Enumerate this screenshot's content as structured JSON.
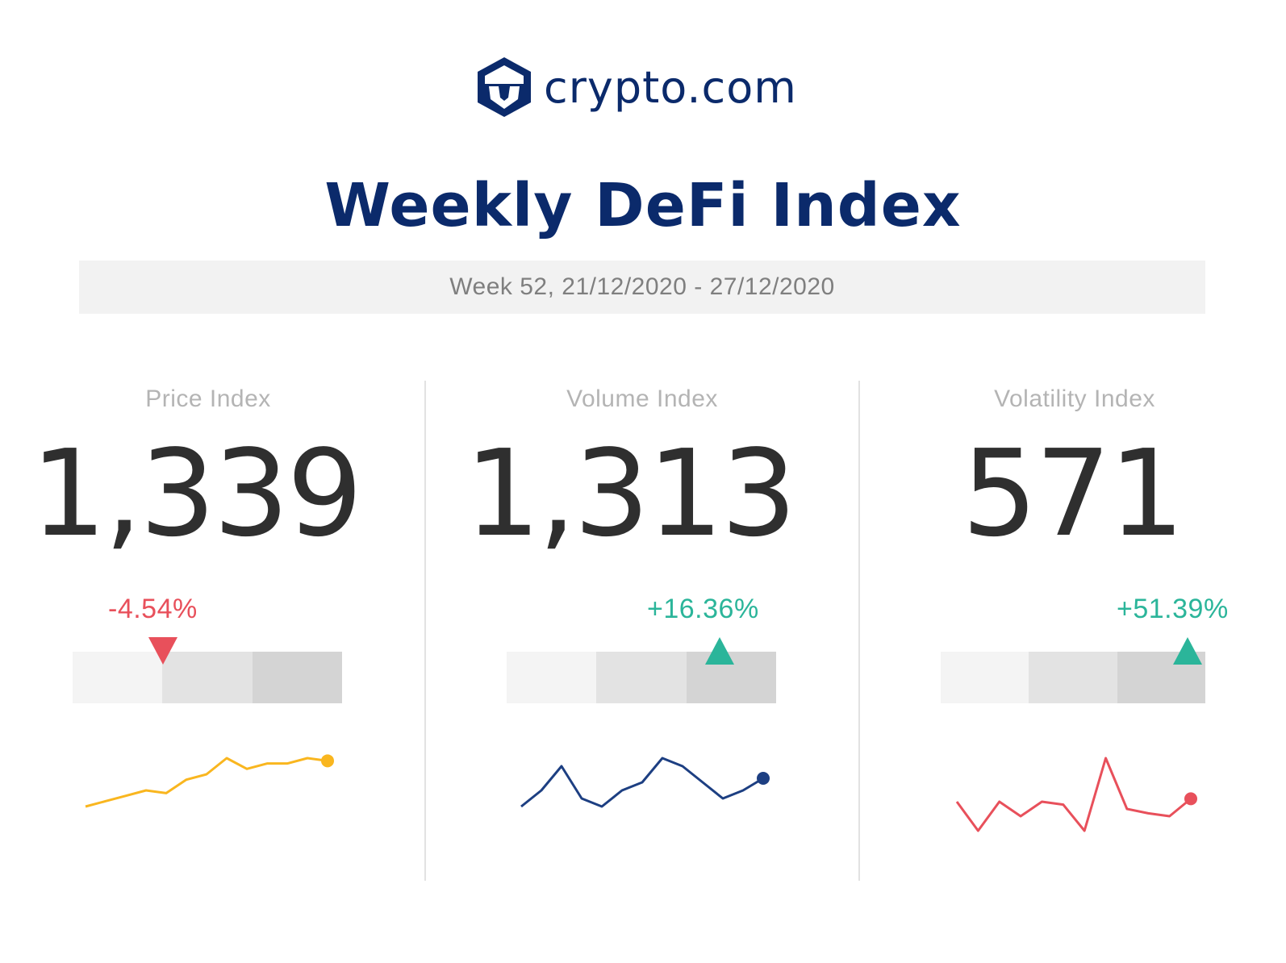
{
  "brand": {
    "name": "crypto.com",
    "logo_icon": "lion-shield-icon"
  },
  "title": "Weekly DeFi Index",
  "subtitle": "Week 52, 21/12/2020 - 27/12/2020",
  "colors": {
    "brand": "#0b2a6b",
    "negative": "#e8505b",
    "positive": "#2bb59a",
    "price_line": "#f9b61f",
    "volume_line": "#1d3f82",
    "volatility_line": "#e8505b",
    "band_low": "#f4f4f4",
    "band_mid": "#e3e3e3",
    "band_high": "#d4d4d4"
  },
  "indices": [
    {
      "label": "Price Index",
      "value": "1,339",
      "change": "-4.54%",
      "direction": "down",
      "marker_level": 0.34
    },
    {
      "label": "Volume Index",
      "value": "1,313",
      "change": "+16.36%",
      "direction": "up",
      "marker_level": 0.79
    },
    {
      "label": "Volatility Index",
      "value": "571",
      "change": "+51.39%",
      "direction": "up",
      "marker_level": 0.93
    }
  ],
  "chart_data": [
    {
      "type": "line",
      "name": "Price Index",
      "values": [
        1,
        2,
        3,
        4,
        3.5,
        6,
        7,
        10,
        8,
        9,
        9,
        10,
        9.5
      ]
    },
    {
      "type": "line",
      "name": "Volume Index",
      "values": [
        3,
        5,
        8,
        4,
        3,
        5,
        6,
        9,
        8,
        6,
        4,
        5,
        6.5
      ]
    },
    {
      "type": "line",
      "name": "Volatility Index",
      "values": [
        4,
        2,
        4,
        3,
        4,
        3.8,
        2,
        7,
        3.5,
        3.2,
        3,
        4.2
      ]
    }
  ]
}
